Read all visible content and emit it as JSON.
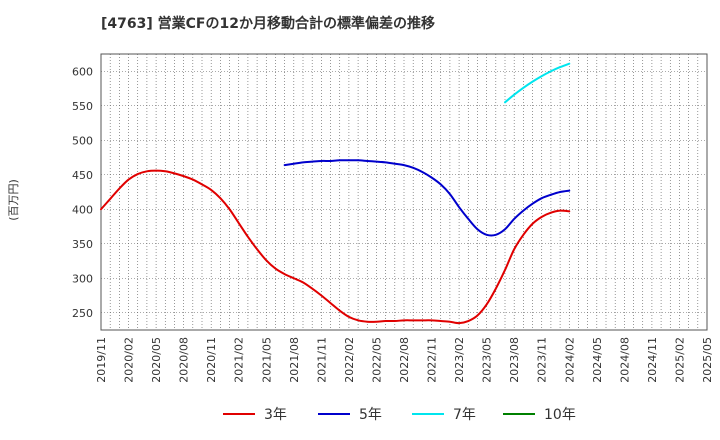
{
  "chart_data": {
    "type": "line",
    "title": "[4763]  営業CFの12か月移動合計の標準偏差の推移",
    "ylabel": "(百万円)",
    "xlabel": "",
    "ylim": [
      225,
      625
    ],
    "yticks": [
      250,
      300,
      350,
      400,
      450,
      500,
      550,
      600
    ],
    "xlim": [
      "2019/11",
      "2025/05"
    ],
    "xticks": [
      "2019/11",
      "2020/02",
      "2020/05",
      "2020/08",
      "2020/11",
      "2021/02",
      "2021/05",
      "2021/08",
      "2021/11",
      "2022/02",
      "2022/05",
      "2022/08",
      "2022/11",
      "2023/02",
      "2023/05",
      "2023/08",
      "2023/11",
      "2024/02",
      "2024/05",
      "2024/08",
      "2024/11",
      "2025/02",
      "2025/05"
    ],
    "grid": true,
    "legend_position": "bottom",
    "series": [
      {
        "name": "3年",
        "color": "#e00000",
        "points": [
          [
            "2019/11",
            400
          ],
          [
            "2019/12",
            415
          ],
          [
            "2020/01",
            430
          ],
          [
            "2020/02",
            443
          ],
          [
            "2020/03",
            451
          ],
          [
            "2020/04",
            455
          ],
          [
            "2020/05",
            456
          ],
          [
            "2020/06",
            455
          ],
          [
            "2020/07",
            452
          ],
          [
            "2020/08",
            448
          ],
          [
            "2020/09",
            443
          ],
          [
            "2020/10",
            436
          ],
          [
            "2020/11",
            428
          ],
          [
            "2020/12",
            416
          ],
          [
            "2021/01",
            400
          ],
          [
            "2021/02",
            380
          ],
          [
            "2021/03",
            360
          ],
          [
            "2021/04",
            342
          ],
          [
            "2021/05",
            326
          ],
          [
            "2021/06",
            314
          ],
          [
            "2021/07",
            306
          ],
          [
            "2021/08",
            300
          ],
          [
            "2021/09",
            294
          ],
          [
            "2021/10",
            285
          ],
          [
            "2021/11",
            275
          ],
          [
            "2021/12",
            264
          ],
          [
            "2022/01",
            253
          ],
          [
            "2022/02",
            244
          ],
          [
            "2022/03",
            239
          ],
          [
            "2022/04",
            237
          ],
          [
            "2022/05",
            237
          ],
          [
            "2022/06",
            238
          ],
          [
            "2022/07",
            238
          ],
          [
            "2022/08",
            239
          ],
          [
            "2022/09",
            239
          ],
          [
            "2022/10",
            239
          ],
          [
            "2022/11",
            239
          ],
          [
            "2022/12",
            238
          ],
          [
            "2023/01",
            237
          ],
          [
            "2023/02",
            235
          ],
          [
            "2023/03",
            238
          ],
          [
            "2023/04",
            246
          ],
          [
            "2023/05",
            262
          ],
          [
            "2023/06",
            285
          ],
          [
            "2023/07",
            312
          ],
          [
            "2023/08",
            342
          ],
          [
            "2023/09",
            363
          ],
          [
            "2023/10",
            379
          ],
          [
            "2023/11",
            389
          ],
          [
            "2023/12",
            395
          ],
          [
            "2024/01",
            398
          ],
          [
            "2024/02",
            397
          ]
        ]
      },
      {
        "name": "5年",
        "color": "#0000cc",
        "points": [
          [
            "2021/07",
            464
          ],
          [
            "2021/08",
            466
          ],
          [
            "2021/09",
            468
          ],
          [
            "2021/10",
            469
          ],
          [
            "2021/11",
            470
          ],
          [
            "2021/12",
            470
          ],
          [
            "2022/01",
            471
          ],
          [
            "2022/02",
            471
          ],
          [
            "2022/03",
            471
          ],
          [
            "2022/04",
            470
          ],
          [
            "2022/05",
            469
          ],
          [
            "2022/06",
            468
          ],
          [
            "2022/07",
            466
          ],
          [
            "2022/08",
            464
          ],
          [
            "2022/09",
            460
          ],
          [
            "2022/10",
            454
          ],
          [
            "2022/11",
            446
          ],
          [
            "2022/12",
            436
          ],
          [
            "2023/01",
            422
          ],
          [
            "2023/02",
            403
          ],
          [
            "2023/03",
            386
          ],
          [
            "2023/04",
            371
          ],
          [
            "2023/05",
            363
          ],
          [
            "2023/06",
            363
          ],
          [
            "2023/07",
            371
          ],
          [
            "2023/08",
            386
          ],
          [
            "2023/09",
            398
          ],
          [
            "2023/10",
            408
          ],
          [
            "2023/11",
            416
          ],
          [
            "2023/12",
            421
          ],
          [
            "2024/01",
            425
          ],
          [
            "2024/02",
            427
          ]
        ]
      },
      {
        "name": "7年",
        "color": "#00e5ee",
        "points": [
          [
            "2023/07",
            555
          ],
          [
            "2023/08",
            566
          ],
          [
            "2023/09",
            576
          ],
          [
            "2023/10",
            585
          ],
          [
            "2023/11",
            593
          ],
          [
            "2023/12",
            600
          ],
          [
            "2024/01",
            606
          ],
          [
            "2024/02",
            611
          ]
        ]
      },
      {
        "name": "10年",
        "color": "#008000",
        "points": []
      }
    ]
  }
}
